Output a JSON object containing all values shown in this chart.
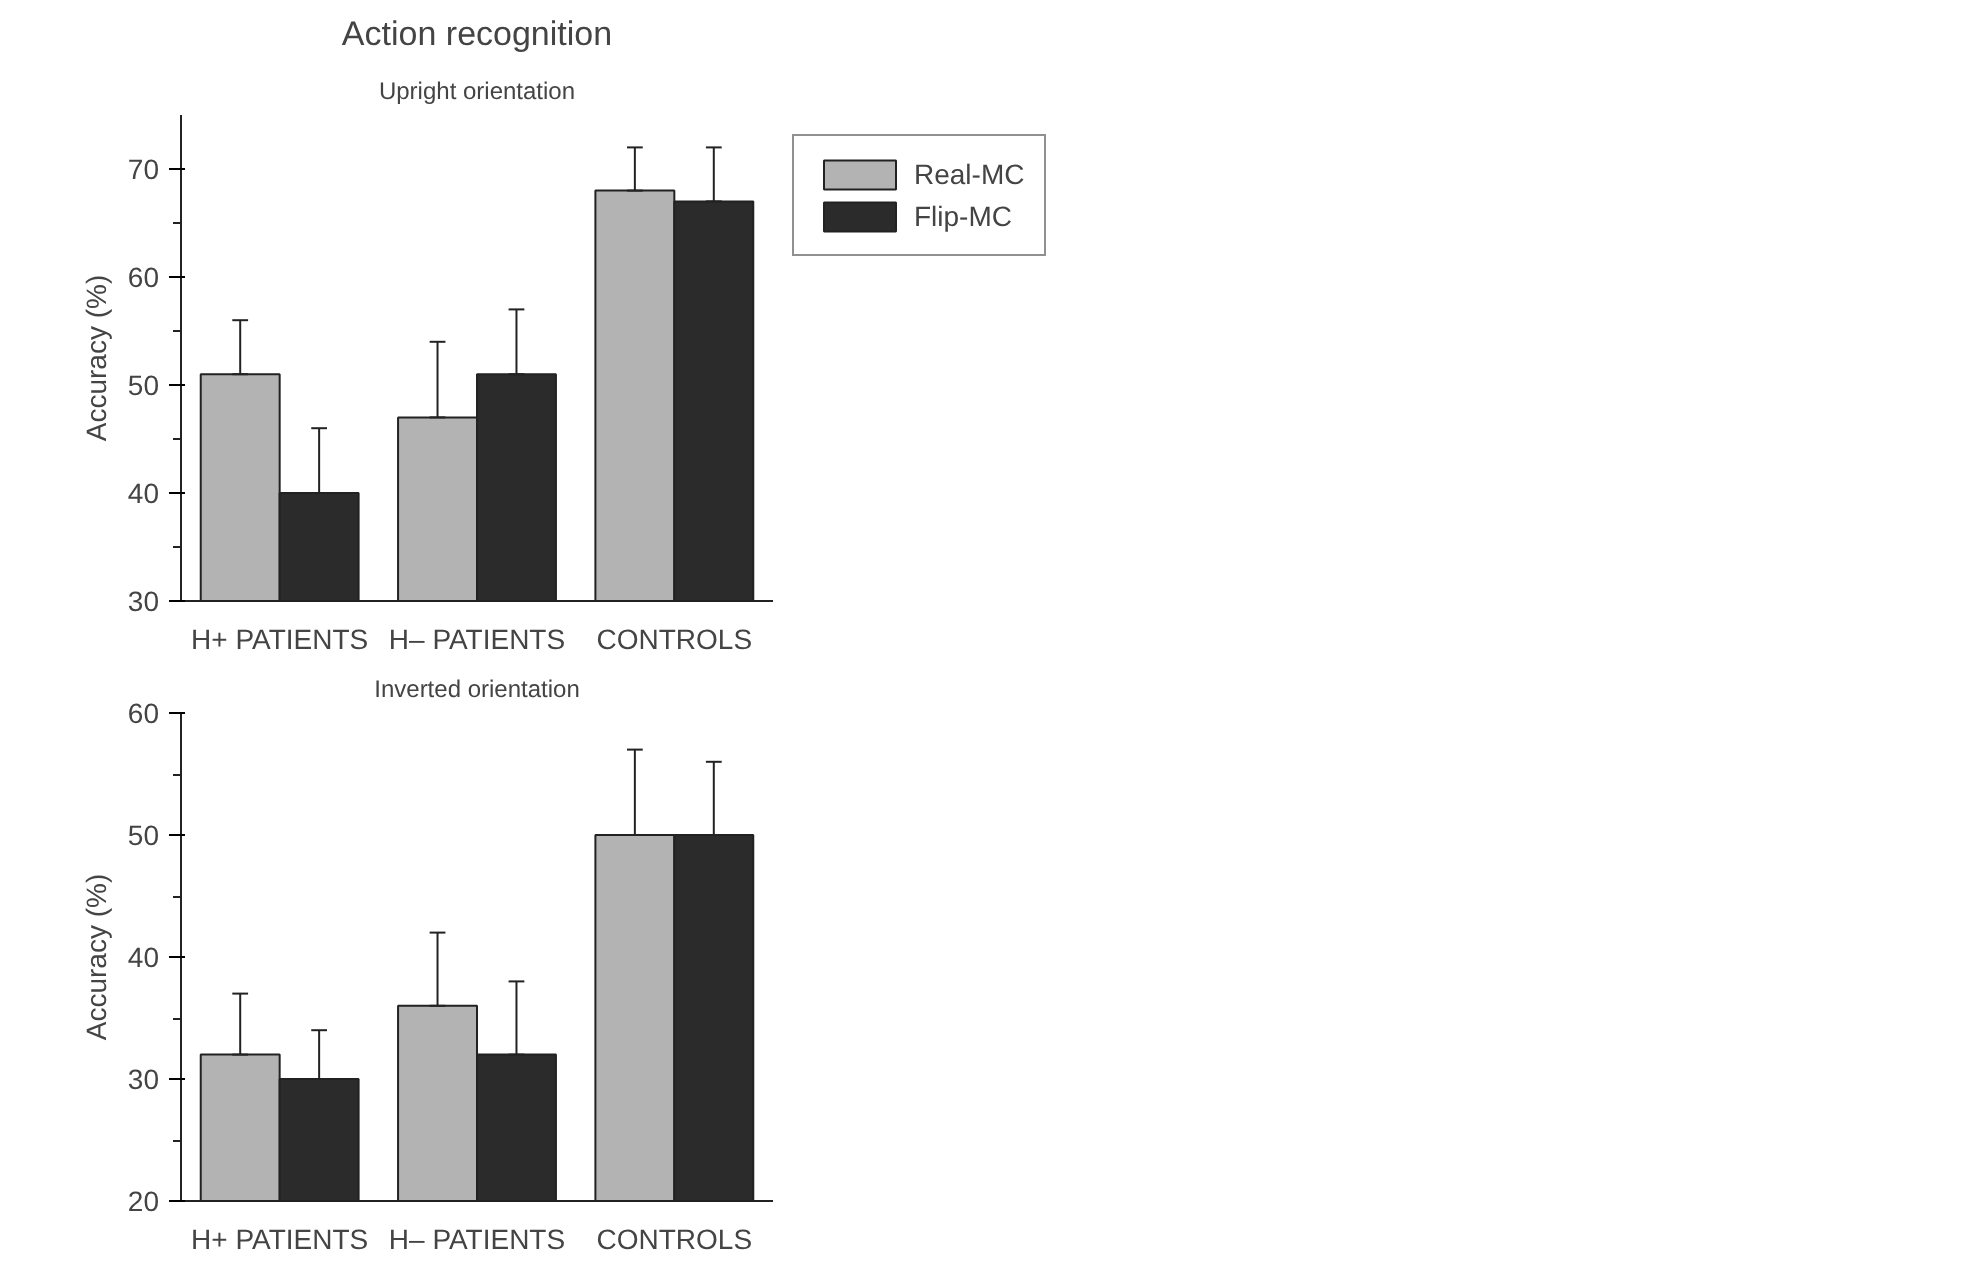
{
  "chart_data": [
    {
      "type": "bar",
      "title": "Action recognition",
      "subtitle": "Upright orientation",
      "ylabel": "Accuracy (%)",
      "categories": [
        "H+ PATIENTS",
        "H– PATIENTS",
        "CONTROLS"
      ],
      "ylim": [
        30,
        75
      ],
      "yticks": [
        30,
        40,
        50,
        60,
        70
      ],
      "legend": "top right",
      "grid": false,
      "series": [
        {
          "name": "Real-MC",
          "color": "#b3b3b3",
          "values": [
            51,
            47,
            68
          ],
          "errors": [
            [
              51,
              56
            ],
            [
              47,
              54
            ],
            [
              68,
              72
            ]
          ]
        },
        {
          "name": "Flip-MC",
          "color": "#2b2b2b",
          "values": [
            40,
            51,
            67
          ],
          "errors": [
            [
              40,
              46
            ],
            [
              51,
              57
            ],
            [
              67,
              72
            ]
          ]
        }
      ]
    },
    {
      "type": "bar",
      "subtitle": "Inverted orientation",
      "ylabel": "Accuracy (%)",
      "categories": [
        "H+ PATIENTS",
        "H– PATIENTS",
        "CONTROLS"
      ],
      "ylim": [
        20,
        60
      ],
      "yticks": [
        20,
        30,
        40,
        50,
        60
      ],
      "grid": false,
      "series": [
        {
          "color": "#b3b3b3",
          "values": [
            32,
            36,
            50
          ],
          "errors": [
            [
              32,
              37
            ],
            [
              36,
              42
            ],
            [
              50,
              57
            ]
          ]
        },
        {
          "color": "#2b2b2b",
          "values": [
            30,
            32,
            50
          ],
          "errors": [
            [
              30,
              34
            ],
            [
              32,
              38
            ],
            [
              50,
              56
            ]
          ]
        }
      ]
    }
  ]
}
